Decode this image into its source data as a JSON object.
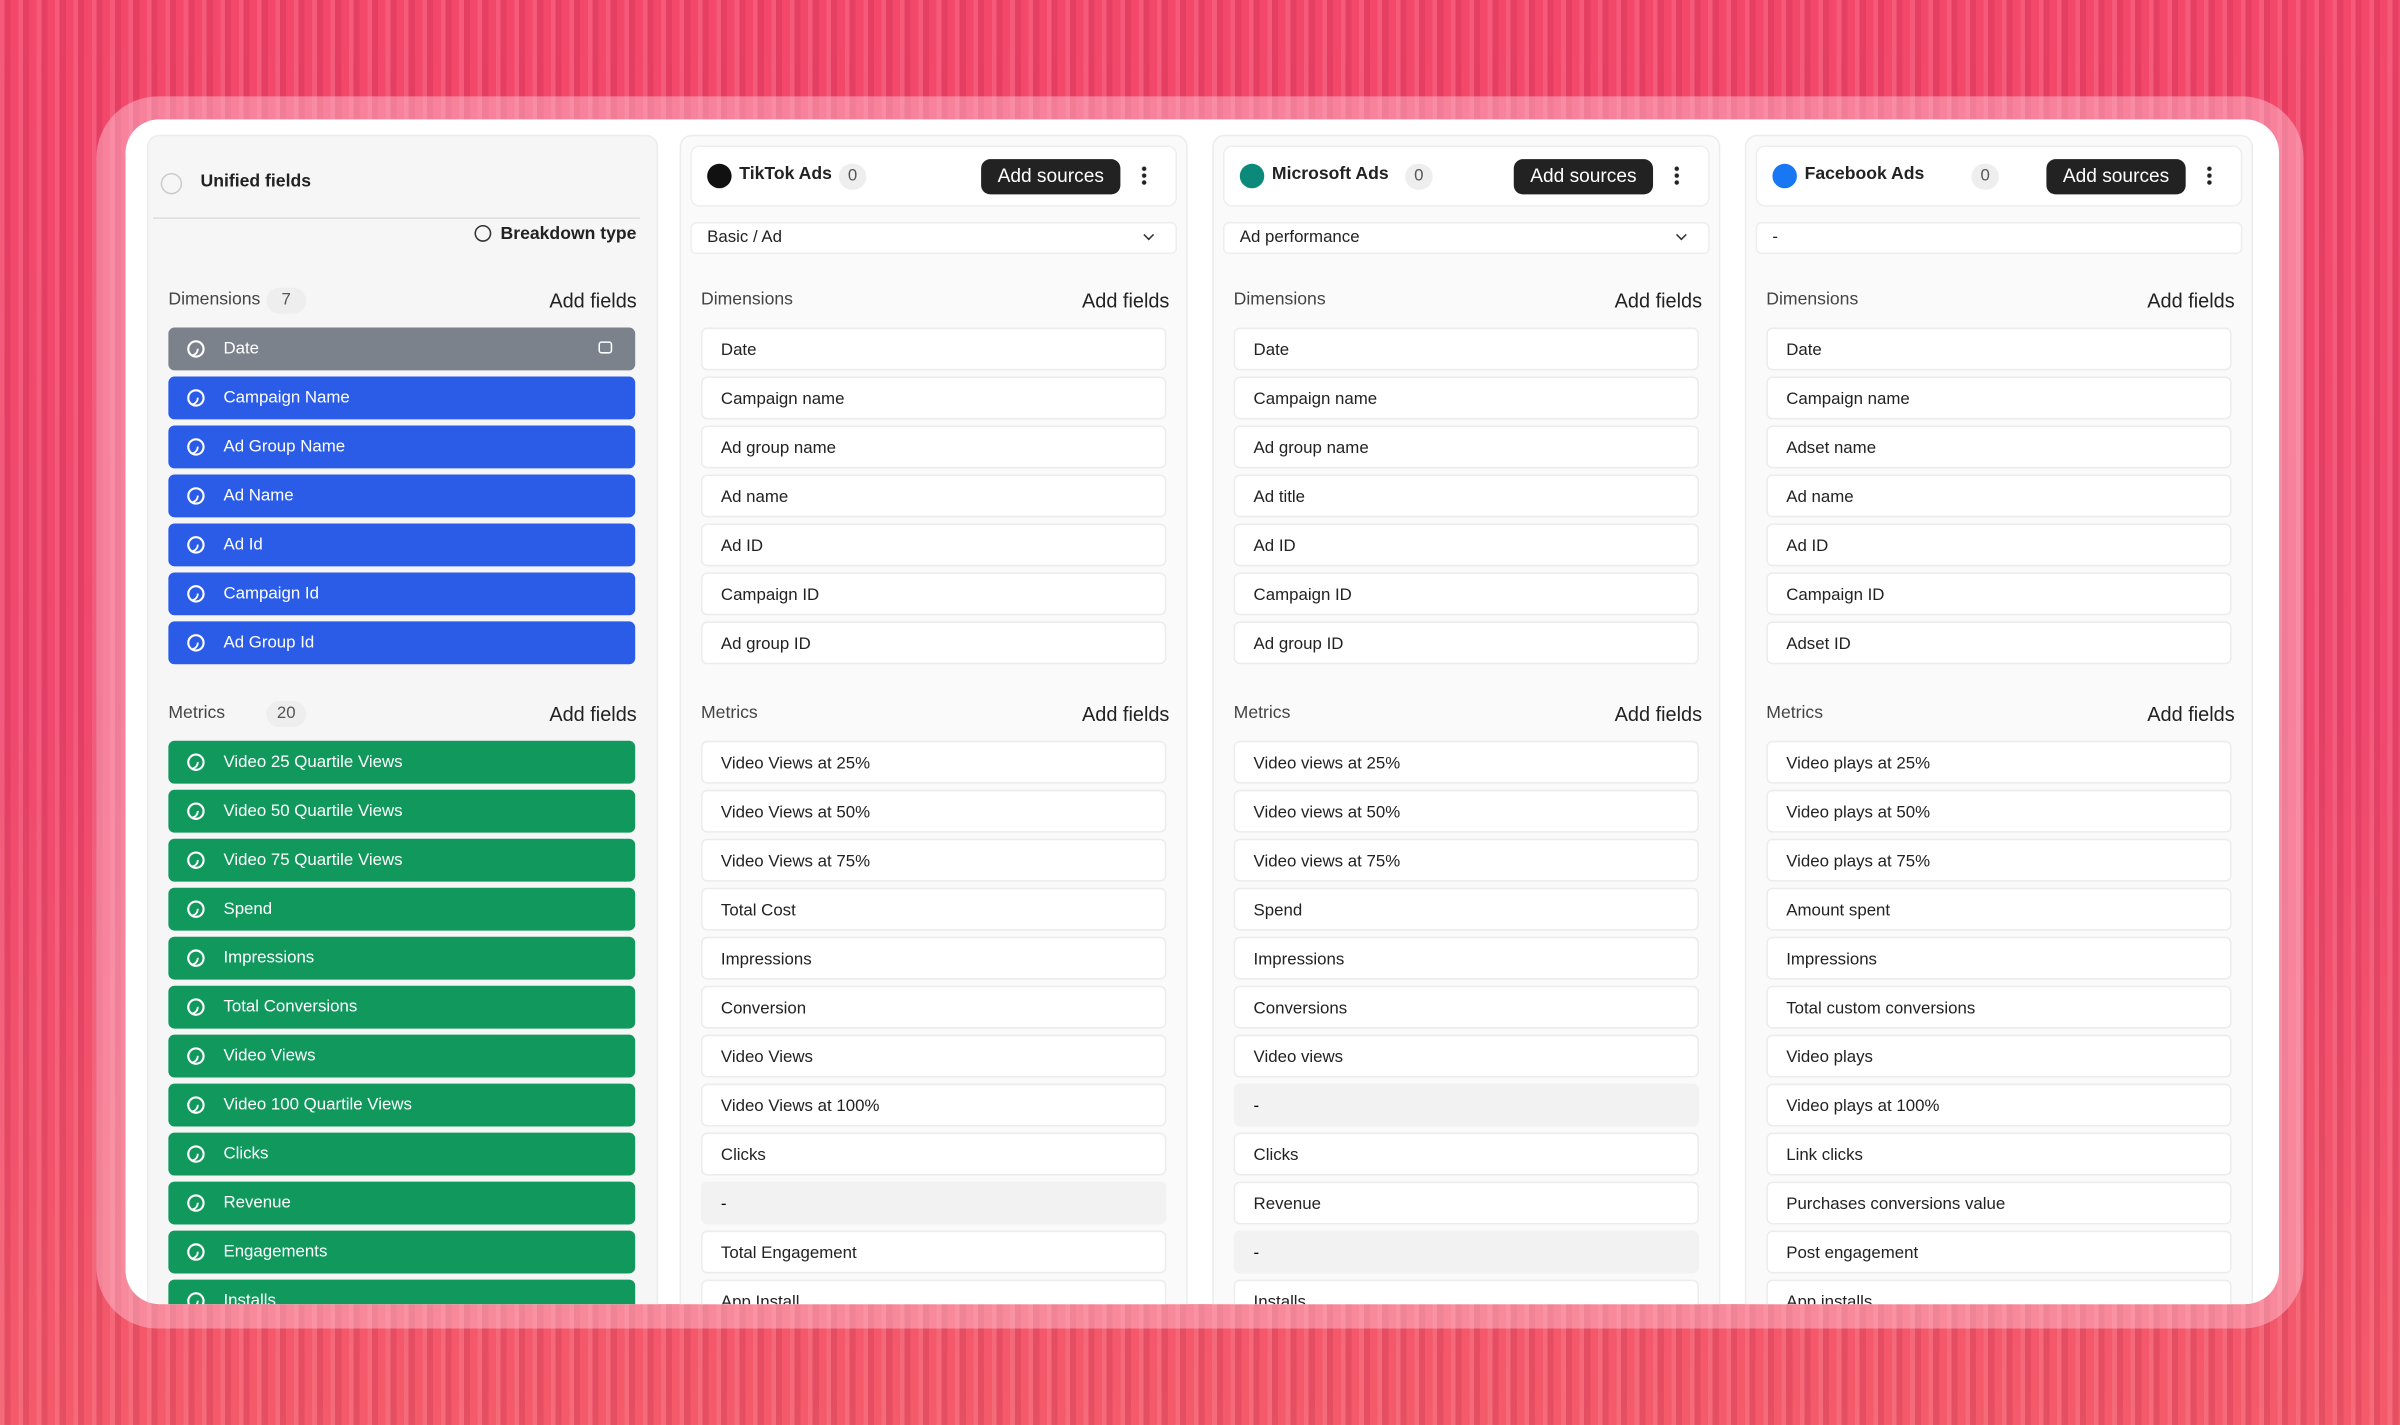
{
  "unified": {
    "title": "Unified fields",
    "breakdown": "Breakdown type",
    "dimensions": {
      "label": "Dimensions",
      "count": 7,
      "action": "Add fields",
      "items": [
        "Date",
        "Campaign Name",
        "Ad Group Name",
        "Ad Name",
        "Ad Id",
        "Campaign Id",
        "Ad Group Id"
      ]
    },
    "metrics": {
      "label": "Metrics",
      "count": 20,
      "action": "Add fields",
      "items": [
        "Video 25 Quartile Views",
        "Video 50 Quartile Views",
        "Video 75 Quartile Views",
        "Spend",
        "Impressions",
        "Total Conversions",
        "Video Views",
        "Video 100 Quartile Views",
        "Clicks",
        "Revenue",
        "Engagements",
        "Installs"
      ]
    }
  },
  "sources": [
    {
      "name": "TikTok Ads",
      "count": 0,
      "button": "Add sources",
      "selector": "Basic / Ad",
      "dimensions": {
        "label": "Dimensions",
        "action": "Add fields",
        "items": [
          "Date",
          "Campaign name",
          "Ad group name",
          "Ad name",
          "Ad ID",
          "Campaign ID",
          "Ad group ID"
        ]
      },
      "metrics": {
        "label": "Metrics",
        "action": "Add fields",
        "items": [
          "Video Views at 25%",
          "Video Views at 50%",
          "Video Views at 75%",
          "Total Cost",
          "Impressions",
          "Conversion",
          "Video Views",
          "Video Views at 100%",
          "Clicks",
          "-",
          "Total Engagement",
          "App Install"
        ]
      }
    },
    {
      "name": "Microsoft Ads",
      "count": 0,
      "button": "Add sources",
      "selector": "Ad performance",
      "dimensions": {
        "label": "Dimensions",
        "action": "Add fields",
        "items": [
          "Date",
          "Campaign name",
          "Ad group name",
          "Ad title",
          "Ad ID",
          "Campaign ID",
          "Ad group ID"
        ]
      },
      "metrics": {
        "label": "Metrics",
        "action": "Add fields",
        "items": [
          "Video views at 25%",
          "Video views at 50%",
          "Video views at 75%",
          "Spend",
          "Impressions",
          "Conversions",
          "Video views",
          "-",
          "Clicks",
          "Revenue",
          "-",
          "Installs"
        ]
      }
    },
    {
      "name": "Facebook Ads",
      "count": 0,
      "button": "Add sources",
      "selector": "-",
      "dimensions": {
        "label": "Dimensions",
        "action": "Add fields",
        "items": [
          "Date",
          "Campaign name",
          "Adset name",
          "Ad name",
          "Ad ID",
          "Campaign ID",
          "Adset ID"
        ]
      },
      "metrics": {
        "label": "Metrics",
        "action": "Add fields",
        "items": [
          "Video plays at 25%",
          "Video plays at 50%",
          "Video plays at 75%",
          "Amount spent",
          "Impressions",
          "Total custom conversions",
          "Video plays",
          "Video plays at 100%",
          "Link clicks",
          "Purchases conversions value",
          "Post engagement",
          "App installs"
        ]
      }
    }
  ]
}
